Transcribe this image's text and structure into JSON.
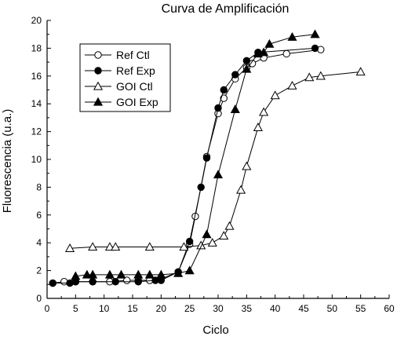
{
  "chart_data": {
    "type": "line",
    "title": "Curva de Amplificación",
    "xlabel": "Ciclo",
    "ylabel": "Fluorescencia (u.a.)",
    "xlim": [
      0,
      60
    ],
    "ylim": [
      0,
      20
    ],
    "xticks": [
      0,
      5,
      10,
      15,
      20,
      25,
      30,
      35,
      40,
      45,
      50,
      55,
      60
    ],
    "yticks": [
      0,
      2,
      4,
      6,
      8,
      10,
      12,
      14,
      16,
      18,
      20
    ],
    "grid": false,
    "legend_position": "top-left",
    "series": [
      {
        "name": "Ref Ctl",
        "marker": "open-circle",
        "x": [
          1,
          3,
          5,
          8,
          11,
          14,
          16,
          18,
          20,
          23,
          25,
          26,
          28,
          30,
          31,
          33,
          35,
          36,
          38,
          42,
          48
        ],
        "y": [
          1.1,
          1.2,
          1.2,
          1.2,
          1.2,
          1.3,
          1.3,
          1.3,
          1.4,
          1.9,
          3.9,
          5.9,
          10.2,
          13.3,
          14.4,
          15.8,
          16.6,
          16.9,
          17.3,
          17.6,
          17.9
        ]
      },
      {
        "name": "Ref Exp",
        "marker": "filled-circle",
        "x": [
          1,
          4,
          5,
          8,
          12,
          16,
          19,
          20,
          23,
          25,
          27,
          28,
          30,
          31,
          33,
          35,
          37,
          47
        ],
        "y": [
          1.1,
          1.1,
          1.2,
          1.2,
          1.2,
          1.2,
          1.3,
          1.3,
          1.9,
          4.1,
          8.0,
          10.1,
          13.7,
          15.0,
          16.1,
          17.1,
          17.7,
          18.0
        ]
      },
      {
        "name": "GOI Ctl",
        "marker": "open-triangle",
        "x": [
          4,
          8,
          11,
          12,
          18,
          24,
          27,
          29,
          31,
          32,
          34,
          35,
          37,
          38,
          40,
          43,
          46,
          48,
          55
        ],
        "y": [
          3.6,
          3.7,
          3.7,
          3.7,
          3.7,
          3.7,
          3.8,
          4.0,
          4.5,
          5.2,
          7.8,
          9.5,
          12.3,
          13.4,
          14.6,
          15.3,
          15.9,
          16.0,
          16.3
        ]
      },
      {
        "name": "GOI Exp",
        "marker": "filled-triangle",
        "x": [
          5,
          7,
          8,
          11,
          13,
          16,
          18,
          20,
          23,
          25,
          28,
          30,
          33,
          35,
          37,
          38,
          39,
          43,
          47
        ],
        "y": [
          1.6,
          1.7,
          1.7,
          1.7,
          1.7,
          1.7,
          1.7,
          1.7,
          1.8,
          2.0,
          4.6,
          8.9,
          13.6,
          16.5,
          17.6,
          17.7,
          18.3,
          18.8,
          19.0
        ]
      }
    ]
  }
}
